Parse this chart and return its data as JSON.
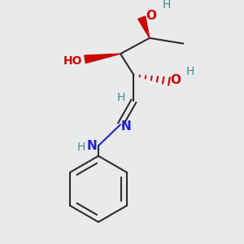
{
  "bg_color": "#e8eaeb",
  "bond_color": "#2d2d2d",
  "O_color": "#cc0000",
  "N_color": "#2222cc",
  "H_color": "#4a8a8a",
  "figsize": [
    3.0,
    3.0
  ],
  "dpi": 100,
  "xlim": [
    0,
    300
  ],
  "ylim": [
    0,
    300
  ]
}
